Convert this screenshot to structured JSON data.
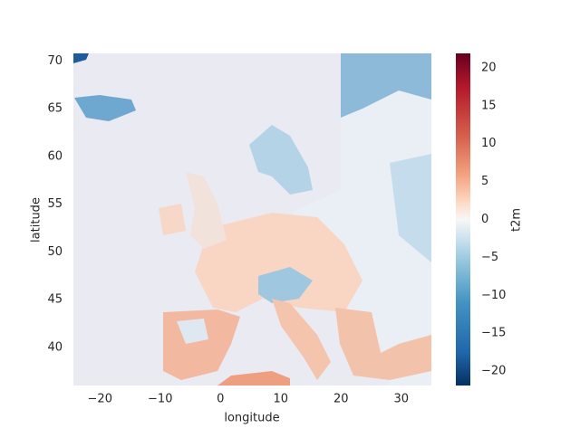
{
  "chart_data": {
    "type": "heatmap",
    "xlabel": "longitude",
    "ylabel": "latitude",
    "colorbar_label": "t2m",
    "xlim": [
      -24.4,
      35
    ],
    "ylim": [
      36,
      70.8
    ],
    "xticks": [
      {
        "value": -20,
        "label": "−20"
      },
      {
        "value": -10,
        "label": "−10"
      },
      0,
      10,
      20,
      30
    ],
    "yticks": [
      40,
      45,
      50,
      55,
      60,
      65,
      70
    ],
    "clim": [
      -21.9,
      21.9
    ],
    "cticks": [
      {
        "value": -20,
        "label": "−20"
      },
      {
        "value": -15,
        "label": "−15"
      },
      {
        "value": -10,
        "label": "−10"
      },
      {
        "value": -5,
        "label": "−5"
      },
      0,
      5,
      10,
      15,
      20
    ]
  }
}
